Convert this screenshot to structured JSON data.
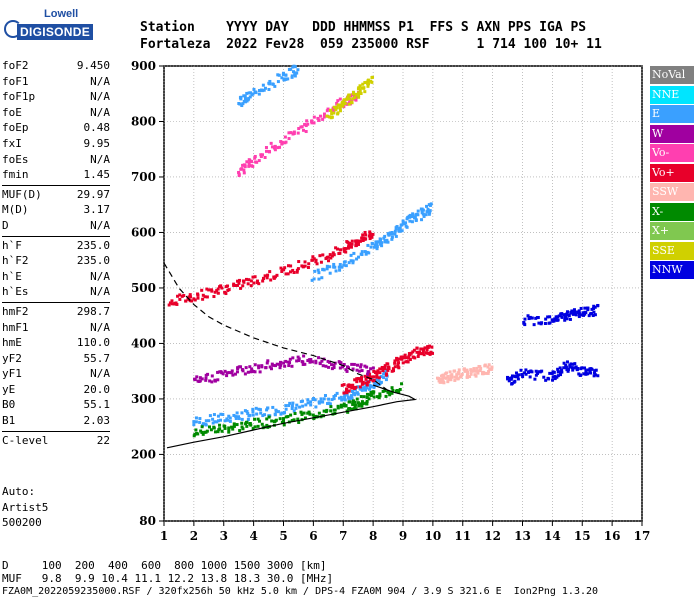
{
  "logo": {
    "top": "Lowell",
    "main": "DIGISONDE"
  },
  "header": {
    "row1": "Station    YYYY DAY   DDD HHMMSS P1  FFS S AXN PPS IGA PS",
    "row2": "Fortaleza  2022 Fev28  059 235000 RSF      1 714 100 10+ 11"
  },
  "params": [
    {
      "label": "foF2",
      "value": "9.450"
    },
    {
      "label": "foF1",
      "value": "N/A"
    },
    {
      "label": "foF1p",
      "value": "N/A"
    },
    {
      "label": "foE",
      "value": "N/A"
    },
    {
      "label": "foEp",
      "value": "0.48"
    },
    {
      "label": "fxI",
      "value": "9.95"
    },
    {
      "label": "foEs",
      "value": "N/A"
    },
    {
      "label": "fmin",
      "value": "1.45"
    },
    {
      "label": "MUF(D)",
      "value": "29.97",
      "sep": true
    },
    {
      "label": "M(D)",
      "value": "3.17"
    },
    {
      "label": "D",
      "value": "N/A"
    },
    {
      "label": "h`F",
      "value": "235.0",
      "sep": true
    },
    {
      "label": "h`F2",
      "value": "235.0"
    },
    {
      "label": "h`E",
      "value": "N/A"
    },
    {
      "label": "h`Es",
      "value": "N/A"
    },
    {
      "label": "hmF2",
      "value": "298.7",
      "sep": true
    },
    {
      "label": "hmF1",
      "value": "N/A"
    },
    {
      "label": "hmE",
      "value": "110.0"
    },
    {
      "label": "yF2",
      "value": "55.7"
    },
    {
      "label": "yF1",
      "value": "N/A"
    },
    {
      "label": "yE",
      "value": "20.0"
    },
    {
      "label": "B0",
      "value": "55.1"
    },
    {
      "label": "B1",
      "value": "2.03"
    },
    {
      "label": "C-level",
      "value": "22",
      "sep": true
    }
  ],
  "autoscaling": [
    "Auto:",
    "Artist5",
    "500200"
  ],
  "legend": [
    {
      "name": "NoVal",
      "color": "#808080"
    },
    {
      "name": "NNE",
      "color": "#00e5ff"
    },
    {
      "name": "E",
      "color": "#3aa0ff"
    },
    {
      "name": "W",
      "color": "#a000a0"
    },
    {
      "name": "Vo-",
      "color": "#ff3fb0"
    },
    {
      "name": "Vo+",
      "color": "#e8002a"
    },
    {
      "name": "SSW",
      "color": "#ffb6b0"
    },
    {
      "name": "X-",
      "color": "#008a00"
    },
    {
      "name": "X+",
      "color": "#80c850"
    },
    {
      "name": "SSE",
      "color": "#d0d000"
    },
    {
      "name": "NNW",
      "color": "#0000e0"
    }
  ],
  "footer": {
    "row1": "D     100  200  400  600  800 1000 1500 3000 [km]",
    "row2": "MUF   9.8  9.9 10.4 11.1 12.2 13.8 18.3 30.0 [MHz]",
    "row3": "FZA0M_2022059235000.RSF / 320fx256h 50 kHz 5.0 km / DPS-4 FZA0M 904 / 3.9 S 321.6 E  Ion2Png 1.3.20"
  },
  "chart_data": {
    "type": "scatter",
    "title": "",
    "xlabel": "",
    "ylabel": "",
    "xlim": [
      1,
      17
    ],
    "ylim": [
      80,
      900
    ],
    "x_ticks": [
      1,
      2,
      3,
      4,
      5,
      6,
      7,
      8,
      9,
      10,
      11,
      12,
      13,
      14,
      15,
      16,
      17
    ],
    "y_ticks": [
      80,
      200,
      300,
      400,
      500,
      600,
      700,
      800,
      900
    ],
    "grid": true,
    "legend_placement": "right",
    "series": [
      {
        "name": "profile",
        "points": [
          [
            1.1,
            212
          ],
          [
            2,
            222
          ],
          [
            3,
            232
          ],
          [
            4,
            244
          ],
          [
            5,
            256
          ],
          [
            6,
            266
          ],
          [
            7,
            276
          ],
          [
            8,
            286
          ],
          [
            8.8,
            295
          ],
          [
            9.4,
            299
          ],
          [
            9.2,
            305
          ],
          [
            8.7,
            312
          ],
          [
            8,
            325
          ]
        ]
      },
      {
        "name": "dashed",
        "points": [
          [
            1,
            545
          ],
          [
            1.5,
            500
          ],
          [
            2,
            470
          ],
          [
            2.5,
            448
          ],
          [
            3,
            433
          ],
          [
            4,
            410
          ],
          [
            5,
            392
          ],
          [
            6,
            378
          ],
          [
            7,
            360
          ],
          [
            7.5,
            345
          ],
          [
            8,
            335
          ],
          [
            8.5,
            315
          ]
        ]
      }
    ],
    "traces": [
      {
        "color": "E",
        "points": [
          [
            2.0,
            258
          ],
          [
            3,
            265
          ],
          [
            4,
            273
          ],
          [
            5,
            282
          ],
          [
            6,
            292
          ],
          [
            7,
            305
          ],
          [
            7.5,
            314
          ],
          [
            8,
            328
          ],
          [
            8.5,
            345
          ]
        ]
      },
      {
        "color": "X-",
        "points": [
          [
            2.0,
            240
          ],
          [
            3,
            247
          ],
          [
            4,
            254
          ],
          [
            5,
            262
          ],
          [
            6,
            272
          ],
          [
            7,
            283
          ],
          [
            7.5,
            293
          ],
          [
            8,
            305
          ],
          [
            9,
            320
          ]
        ]
      },
      {
        "color": "Vo+",
        "points": [
          [
            7.0,
            318
          ],
          [
            7.5,
            328
          ],
          [
            8,
            340
          ],
          [
            8.5,
            355
          ],
          [
            9,
            370
          ],
          [
            9.5,
            385
          ],
          [
            10,
            390
          ]
        ]
      },
      {
        "color": "Vo+",
        "points": [
          [
            1.2,
            475
          ],
          [
            2,
            485
          ],
          [
            3,
            498
          ],
          [
            4,
            512
          ],
          [
            5,
            530
          ],
          [
            6,
            548
          ],
          [
            7,
            570
          ],
          [
            7.5,
            585
          ],
          [
            8,
            600
          ]
        ]
      },
      {
        "color": "E",
        "points": [
          [
            6.0,
            520
          ],
          [
            7,
            545
          ],
          [
            8,
            575
          ],
          [
            8.5,
            590
          ],
          [
            9,
            615
          ],
          [
            9.5,
            630
          ],
          [
            10,
            645
          ]
        ]
      },
      {
        "color": "Vo-",
        "points": [
          [
            3.5,
            710
          ],
          [
            4,
            730
          ],
          [
            5,
            765
          ],
          [
            6,
            800
          ],
          [
            7,
            835
          ],
          [
            7.5,
            850
          ]
        ]
      },
      {
        "color": "E",
        "points": [
          [
            3.5,
            835
          ],
          [
            4,
            850
          ],
          [
            5,
            880
          ],
          [
            5.5,
            895
          ]
        ]
      },
      {
        "color": "SSE",
        "points": [
          [
            6.5,
            810
          ],
          [
            7,
            830
          ],
          [
            7.5,
            850
          ],
          [
            8,
            880
          ]
        ]
      },
      {
        "color": "SSW",
        "points": [
          [
            10.2,
            330
          ],
          [
            10.5,
            340
          ],
          [
            11,
            345
          ],
          [
            11.5,
            350
          ],
          [
            12,
            355
          ]
        ]
      },
      {
        "color": "NNW",
        "points": [
          [
            12.5,
            330
          ],
          [
            13,
            345
          ],
          [
            14,
            340
          ],
          [
            14.5,
            360
          ],
          [
            15,
            350
          ],
          [
            15.5,
            345
          ]
        ]
      },
      {
        "color": "NNW",
        "points": [
          [
            13,
            440
          ],
          [
            14,
            445
          ],
          [
            14.5,
            450
          ],
          [
            15,
            455
          ],
          [
            15.5,
            460
          ]
        ]
      },
      {
        "color": "W",
        "points": [
          [
            2,
            330
          ],
          [
            3,
            345
          ],
          [
            4,
            355
          ],
          [
            5,
            365
          ],
          [
            6,
            370
          ],
          [
            7,
            360
          ],
          [
            8,
            350
          ]
        ]
      }
    ]
  }
}
